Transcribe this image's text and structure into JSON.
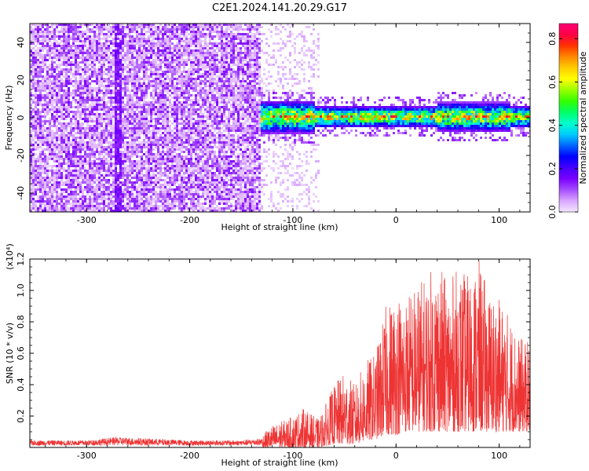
{
  "page": {
    "title": "C2E1.2024.141.20.29.G17"
  },
  "chart_data": [
    {
      "type": "heatmap",
      "title": "C2E1.2024.141.20.29.G17",
      "xlabel": "Height of straight line (km)",
      "ylabel": "Frequency (Hz)",
      "xlim": [
        -355,
        130
      ],
      "ylim": [
        -50,
        50
      ],
      "xticks": [
        -300,
        -200,
        -100,
        0,
        100
      ],
      "yticks": [
        -40,
        -20,
        0,
        20,
        40
      ],
      "colorbar": {
        "label": "Normalized spectral amplitude",
        "range": [
          0,
          0.87
        ],
        "ticks": [
          "0.0",
          "0.2",
          "0.4",
          "0.6",
          "0.8"
        ],
        "colors": [
          "#f4e6ff",
          "#d9a6ff",
          "#a64dff",
          "#7a00ff",
          "#4400ff",
          "#0000ff",
          "#0066ff",
          "#00ccff",
          "#00ffcc",
          "#00ff66",
          "#33ff00",
          "#99ff00",
          "#ffff00",
          "#ffcc00",
          "#ff8800",
          "#ff3300",
          "#ff0044",
          "#ff0077"
        ]
      },
      "regions": [
        {
          "name": "noise-field",
          "x": [
            -355,
            -132
          ],
          "y": [
            -50,
            50
          ],
          "amplitude": 0.1
        },
        {
          "name": "sparse-transition",
          "x": [
            -132,
            -75
          ],
          "y": [
            -50,
            50
          ],
          "amplitude": 0.03
        },
        {
          "name": "signal-band",
          "x": [
            -132,
            130
          ],
          "center_freq": 1,
          "half_width": 6,
          "amplitude": 0.5,
          "peak_amplitude": 0.87
        }
      ]
    },
    {
      "type": "line",
      "xlabel": "Height of straight line (km)",
      "ylabel": "SNR (10 * v/v)",
      "exponent_label": "(x10⁴)",
      "xlim": [
        -355,
        130
      ],
      "ylim": [
        0,
        1.2
      ],
      "xticks": [
        -300,
        -200,
        -100,
        0,
        100
      ],
      "yticks": [
        0.2,
        0.4,
        0.6,
        0.8,
        1.0,
        1.2
      ],
      "yticklabels": [
        "0.2",
        "0.4",
        "0.6",
        "0.8",
        "1.0",
        "1.2"
      ],
      "color": "#ee3333",
      "envelope": {
        "x": [
          -355,
          -300,
          -270,
          -200,
          -150,
          -130,
          -120,
          -100,
          -90,
          -75,
          -60,
          -50,
          -40,
          -30,
          -20,
          -10,
          0,
          10,
          20,
          30,
          40,
          50,
          60,
          70,
          80,
          90,
          100,
          110,
          120,
          130
        ],
        "max": [
          0.06,
          0.06,
          0.09,
          0.06,
          0.06,
          0.08,
          0.14,
          0.2,
          0.25,
          0.18,
          0.4,
          0.48,
          0.4,
          0.55,
          0.6,
          0.9,
          1.0,
          0.98,
          1.05,
          1.1,
          1.2,
          1.05,
          1.15,
          1.1,
          1.2,
          1.0,
          0.95,
          0.85,
          0.7,
          0.68
        ],
        "min": [
          0.0,
          0.0,
          0.0,
          0.0,
          0.0,
          0.0,
          0.0,
          0.0,
          0.0,
          0.0,
          0.02,
          0.02,
          0.02,
          0.04,
          0.05,
          0.08,
          0.08,
          0.1,
          0.1,
          0.1,
          0.1,
          0.1,
          0.1,
          0.1,
          0.1,
          0.1,
          0.1,
          0.1,
          0.1,
          0.1
        ]
      }
    }
  ]
}
